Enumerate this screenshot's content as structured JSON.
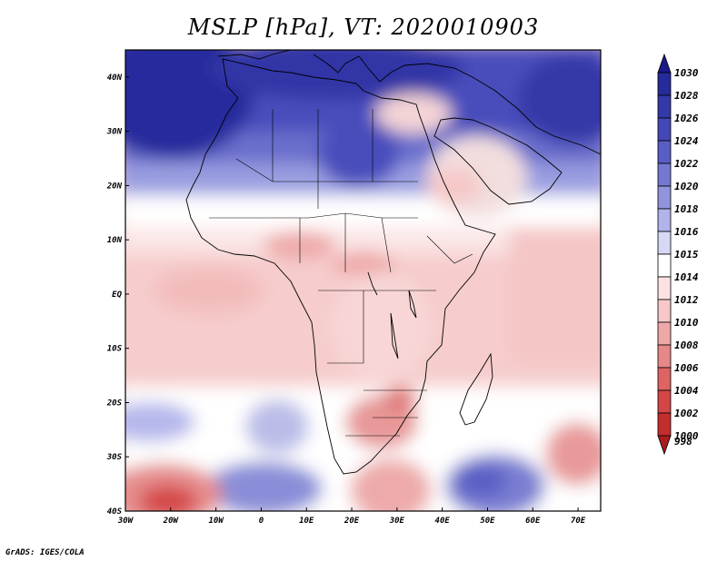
{
  "title": "MSLP [hPa], VT: 2020010903",
  "credit": "GrADS: IGES/COLA",
  "colors": {
    "land_outline": "#000000",
    "frame": "#000000"
  },
  "map": {
    "lon_range": [
      -30,
      75
    ],
    "lat_range": [
      -40,
      45
    ],
    "lon_ticks": [
      {
        "value": -30,
        "label": "30W"
      },
      {
        "value": -20,
        "label": "20W"
      },
      {
        "value": -10,
        "label": "10W"
      },
      {
        "value": 0,
        "label": "0"
      },
      {
        "value": 10,
        "label": "10E"
      },
      {
        "value": 20,
        "label": "20E"
      },
      {
        "value": 30,
        "label": "30E"
      },
      {
        "value": 40,
        "label": "40E"
      },
      {
        "value": 50,
        "label": "50E"
      },
      {
        "value": 60,
        "label": "60E"
      },
      {
        "value": 70,
        "label": "70E"
      }
    ],
    "lat_ticks": [
      {
        "value": 40,
        "label": "40N"
      },
      {
        "value": 30,
        "label": "30N"
      },
      {
        "value": 20,
        "label": "20N"
      },
      {
        "value": 10,
        "label": "10N"
      },
      {
        "value": 0,
        "label": "EQ"
      },
      {
        "value": -10,
        "label": "10S"
      },
      {
        "value": -20,
        "label": "20S"
      },
      {
        "value": -30,
        "label": "30S"
      },
      {
        "value": -40,
        "label": "40S"
      }
    ]
  },
  "legend": {
    "levels": [
      {
        "label": "1030",
        "color": "#1a1a8a"
      },
      {
        "label": "1028",
        "color": "#262a9a"
      },
      {
        "label": "1026",
        "color": "#3438a8"
      },
      {
        "label": "1024",
        "color": "#4448b6"
      },
      {
        "label": "1022",
        "color": "#5a5ec4"
      },
      {
        "label": "1020",
        "color": "#7478d0"
      },
      {
        "label": "1018",
        "color": "#9094dc"
      },
      {
        "label": "1016",
        "color": "#b0b4ea"
      },
      {
        "label": "1015",
        "color": "#d6d8f6"
      },
      {
        "label": "1014",
        "color": "#ffffff"
      },
      {
        "label": "1012",
        "color": "#fbe2e2"
      },
      {
        "label": "1010",
        "color": "#f6c8c8"
      },
      {
        "label": "1008",
        "color": "#eea8a8"
      },
      {
        "label": "1006",
        "color": "#e68888"
      },
      {
        "label": "1004",
        "color": "#de6464"
      },
      {
        "label": "1002",
        "color": "#d44646"
      },
      {
        "label": "1000",
        "color": "#c42e2e"
      },
      {
        "label": "998",
        "color": "#a81e1e"
      }
    ]
  }
}
